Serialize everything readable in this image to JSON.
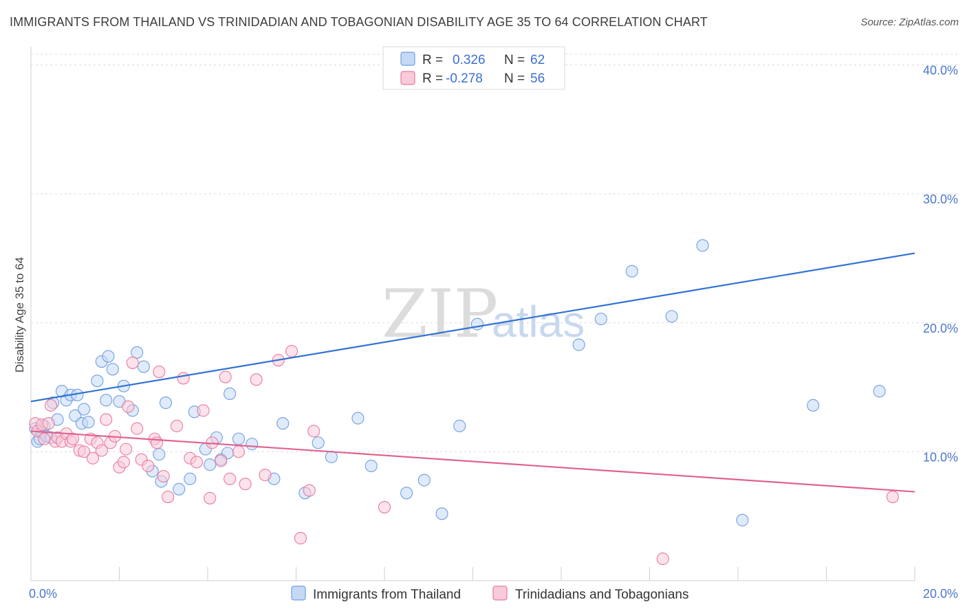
{
  "title": "IMMIGRANTS FROM THAILAND VS TRINIDADIAN AND TOBAGONIAN DISABILITY AGE 35 TO 64 CORRELATION CHART",
  "source": "Source: ZipAtlas.com",
  "watermark": {
    "zip": "ZIP",
    "atlas": "atlas"
  },
  "chart_data": {
    "type": "scatter",
    "title": "IMMIGRANTS FROM THAILAND VS TRINIDADIAN AND TOBAGONIAN DISABILITY AGE 35 TO 64 CORRELATION CHART",
    "xlabel": "",
    "ylabel": "Disability Age 35 to 64",
    "xlim": [
      0,
      20
    ],
    "ylim": [
      0,
      42
    ],
    "x_tick_labels": [
      "0.0%",
      "20.0%"
    ],
    "y_ticks": [
      10,
      20,
      30,
      40
    ],
    "y_tick_labels": [
      "10.0%",
      "20.0%",
      "30.0%",
      "40.0%"
    ],
    "grid": true,
    "legend_placement": "top-center",
    "series": [
      {
        "name": "Immigrants from Thailand",
        "color": "#6f9fe0",
        "fill": "#c5d9f5",
        "R": "0.326",
        "N": "62",
        "trend": {
          "x0": 0,
          "y0": 13.9,
          "x1": 20,
          "y1": 25.4
        },
        "points": [
          [
            0.1,
            11.8
          ],
          [
            0.15,
            10.8
          ],
          [
            0.2,
            11.0
          ],
          [
            0.25,
            11.5
          ],
          [
            0.3,
            12.0
          ],
          [
            0.35,
            11.2
          ],
          [
            0.45,
            11.1
          ],
          [
            0.5,
            13.8
          ],
          [
            0.6,
            12.5
          ],
          [
            0.7,
            14.7
          ],
          [
            0.8,
            14.0
          ],
          [
            0.9,
            14.4
          ],
          [
            1.0,
            12.8
          ],
          [
            1.05,
            14.4
          ],
          [
            1.15,
            12.2
          ],
          [
            1.2,
            13.3
          ],
          [
            1.3,
            12.3
          ],
          [
            1.5,
            15.5
          ],
          [
            1.6,
            17.0
          ],
          [
            1.7,
            14.0
          ],
          [
            1.75,
            17.4
          ],
          [
            1.85,
            16.4
          ],
          [
            2.0,
            13.9
          ],
          [
            2.1,
            15.1
          ],
          [
            2.3,
            13.2
          ],
          [
            2.4,
            17.7
          ],
          [
            2.55,
            16.6
          ],
          [
            2.75,
            8.5
          ],
          [
            2.9,
            9.8
          ],
          [
            2.95,
            7.7
          ],
          [
            3.05,
            13.8
          ],
          [
            3.35,
            7.1
          ],
          [
            3.6,
            7.9
          ],
          [
            3.7,
            13.1
          ],
          [
            3.95,
            10.2
          ],
          [
            4.05,
            9.0
          ],
          [
            4.2,
            11.1
          ],
          [
            4.3,
            9.4
          ],
          [
            4.5,
            14.5
          ],
          [
            4.45,
            9.9
          ],
          [
            4.7,
            11.0
          ],
          [
            5.0,
            10.6
          ],
          [
            5.5,
            7.9
          ],
          [
            5.7,
            12.2
          ],
          [
            6.2,
            6.8
          ],
          [
            6.5,
            10.7
          ],
          [
            6.8,
            9.6
          ],
          [
            7.4,
            12.6
          ],
          [
            7.7,
            8.9
          ],
          [
            8.5,
            6.8
          ],
          [
            8.9,
            7.8
          ],
          [
            9.3,
            5.2
          ],
          [
            9.7,
            12.0
          ],
          [
            10.1,
            19.9
          ],
          [
            12.4,
            18.3
          ],
          [
            12.9,
            20.3
          ],
          [
            13.6,
            24.0
          ],
          [
            14.5,
            20.5
          ],
          [
            15.2,
            26.0
          ],
          [
            16.1,
            4.7
          ],
          [
            17.7,
            13.6
          ],
          [
            19.2,
            14.7
          ]
        ]
      },
      {
        "name": "Trinidadians and Tobagonians",
        "color": "#e77aa0",
        "fill": "#f9cad9",
        "R": "-0.278",
        "N": "56",
        "trend": {
          "x0": 0,
          "y0": 11.6,
          "x1": 20,
          "y1": 6.9
        },
        "points": [
          [
            0.1,
            12.2
          ],
          [
            0.15,
            11.6
          ],
          [
            0.25,
            12.1
          ],
          [
            0.3,
            11.0
          ],
          [
            0.4,
            12.2
          ],
          [
            0.45,
            13.6
          ],
          [
            0.55,
            10.8
          ],
          [
            0.6,
            11.1
          ],
          [
            0.7,
            10.8
          ],
          [
            0.8,
            11.4
          ],
          [
            0.9,
            10.8
          ],
          [
            0.95,
            11.0
          ],
          [
            1.1,
            10.1
          ],
          [
            1.2,
            10.0
          ],
          [
            1.35,
            11.0
          ],
          [
            1.4,
            9.5
          ],
          [
            1.5,
            10.7
          ],
          [
            1.6,
            10.1
          ],
          [
            1.7,
            12.5
          ],
          [
            1.8,
            10.7
          ],
          [
            1.9,
            11.2
          ],
          [
            2.0,
            8.8
          ],
          [
            2.1,
            9.2
          ],
          [
            2.15,
            10.2
          ],
          [
            2.2,
            13.5
          ],
          [
            2.3,
            16.9
          ],
          [
            2.4,
            11.8
          ],
          [
            2.5,
            9.4
          ],
          [
            2.65,
            8.9
          ],
          [
            2.8,
            11.0
          ],
          [
            2.85,
            10.7
          ],
          [
            2.9,
            16.2
          ],
          [
            3.0,
            8.1
          ],
          [
            3.1,
            6.5
          ],
          [
            3.3,
            12.0
          ],
          [
            3.45,
            15.7
          ],
          [
            3.6,
            9.5
          ],
          [
            3.75,
            9.2
          ],
          [
            3.9,
            13.2
          ],
          [
            4.05,
            6.4
          ],
          [
            4.1,
            10.7
          ],
          [
            4.3,
            9.3
          ],
          [
            4.4,
            15.8
          ],
          [
            4.5,
            7.9
          ],
          [
            4.7,
            10.0
          ],
          [
            4.85,
            7.5
          ],
          [
            5.1,
            15.6
          ],
          [
            5.3,
            8.2
          ],
          [
            5.6,
            17.1
          ],
          [
            5.9,
            17.8
          ],
          [
            6.1,
            3.3
          ],
          [
            6.3,
            7.0
          ],
          [
            6.4,
            11.6
          ],
          [
            8.0,
            5.7
          ],
          [
            14.3,
            1.7
          ],
          [
            19.5,
            6.5
          ]
        ]
      }
    ]
  }
}
